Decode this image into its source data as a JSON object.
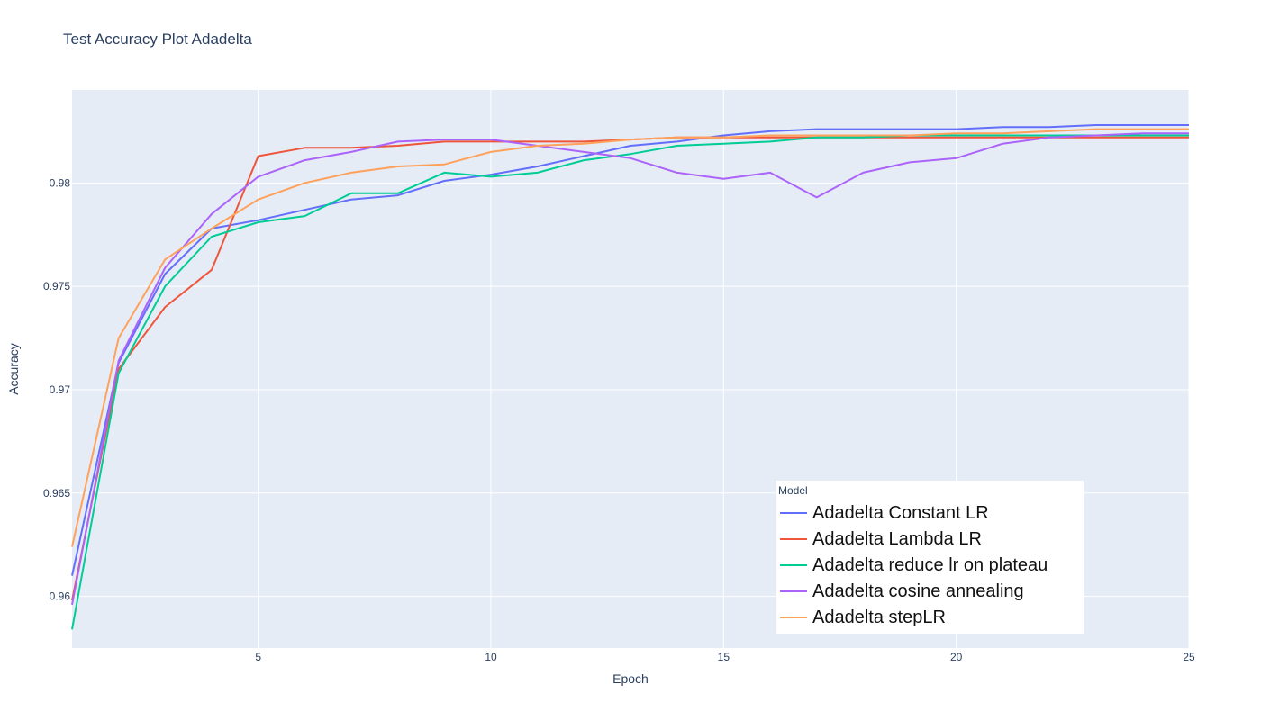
{
  "chart_data": {
    "type": "line",
    "title": "Test Accuracy Plot Adadelta",
    "xlabel": "Epoch",
    "ylabel": "Accuracy",
    "xlim": [
      1,
      25
    ],
    "ylim": [
      0.9575,
      0.9845
    ],
    "x_ticks": [
      5,
      10,
      15,
      20,
      25
    ],
    "y_ticks": [
      0.96,
      0.965,
      0.97,
      0.975,
      0.98
    ],
    "y_tick_labels": [
      "0.96",
      "0.965",
      "0.97",
      "0.975",
      "0.98"
    ],
    "x": [
      1,
      2,
      3,
      4,
      5,
      6,
      7,
      8,
      9,
      10,
      11,
      12,
      13,
      14,
      15,
      16,
      17,
      18,
      19,
      20,
      21,
      22,
      23,
      24,
      25
    ],
    "grid": true,
    "legend": {
      "title": "Model",
      "placement": "bottom-right inside"
    },
    "series": [
      {
        "name": "Adadelta Constant LR",
        "color": "#636efa",
        "values": [
          0.961,
          0.9713,
          0.9756,
          0.9778,
          0.9782,
          0.9787,
          0.9792,
          0.9794,
          0.9801,
          0.9804,
          0.9808,
          0.9813,
          0.9818,
          0.982,
          0.9823,
          0.9825,
          0.9826,
          0.9826,
          0.9826,
          0.9826,
          0.9827,
          0.9827,
          0.9828,
          0.9828,
          0.9828
        ]
      },
      {
        "name": "Adadelta Lambda LR",
        "color": "#ef553b",
        "values": [
          0.9598,
          0.971,
          0.974,
          0.9758,
          0.9813,
          0.9817,
          0.9817,
          0.9818,
          0.982,
          0.982,
          0.982,
          0.982,
          0.9821,
          0.9822,
          0.9822,
          0.9822,
          0.9822,
          0.9822,
          0.9822,
          0.9822,
          0.9822,
          0.9822,
          0.9822,
          0.9822,
          0.9822
        ]
      },
      {
        "name": "Adadelta reduce lr on plateau",
        "color": "#00cc96",
        "values": [
          0.9584,
          0.9708,
          0.975,
          0.9774,
          0.9781,
          0.9784,
          0.9795,
          0.9795,
          0.9805,
          0.9803,
          0.9805,
          0.9811,
          0.9814,
          0.9818,
          0.9819,
          0.982,
          0.9822,
          0.9822,
          0.9823,
          0.9823,
          0.9823,
          0.9823,
          0.9823,
          0.9823,
          0.9823
        ]
      },
      {
        "name": "Adadelta cosine annealing",
        "color": "#ab63fa",
        "values": [
          0.9596,
          0.9714,
          0.9759,
          0.9785,
          0.9803,
          0.9811,
          0.9815,
          0.982,
          0.9821,
          0.9821,
          0.9818,
          0.9815,
          0.9812,
          0.9805,
          0.9802,
          0.9805,
          0.9793,
          0.9805,
          0.981,
          0.9812,
          0.9819,
          0.9822,
          0.9823,
          0.9824,
          0.9824
        ]
      },
      {
        "name": "Adadelta stepLR",
        "color": "#ffa15a",
        "values": [
          0.9624,
          0.9725,
          0.9763,
          0.9778,
          0.9792,
          0.98,
          0.9805,
          0.9808,
          0.9809,
          0.9815,
          0.9818,
          0.9819,
          0.9821,
          0.9822,
          0.9822,
          0.9823,
          0.9823,
          0.9823,
          0.9823,
          0.9824,
          0.9824,
          0.9825,
          0.9826,
          0.9826,
          0.9826
        ]
      }
    ]
  }
}
